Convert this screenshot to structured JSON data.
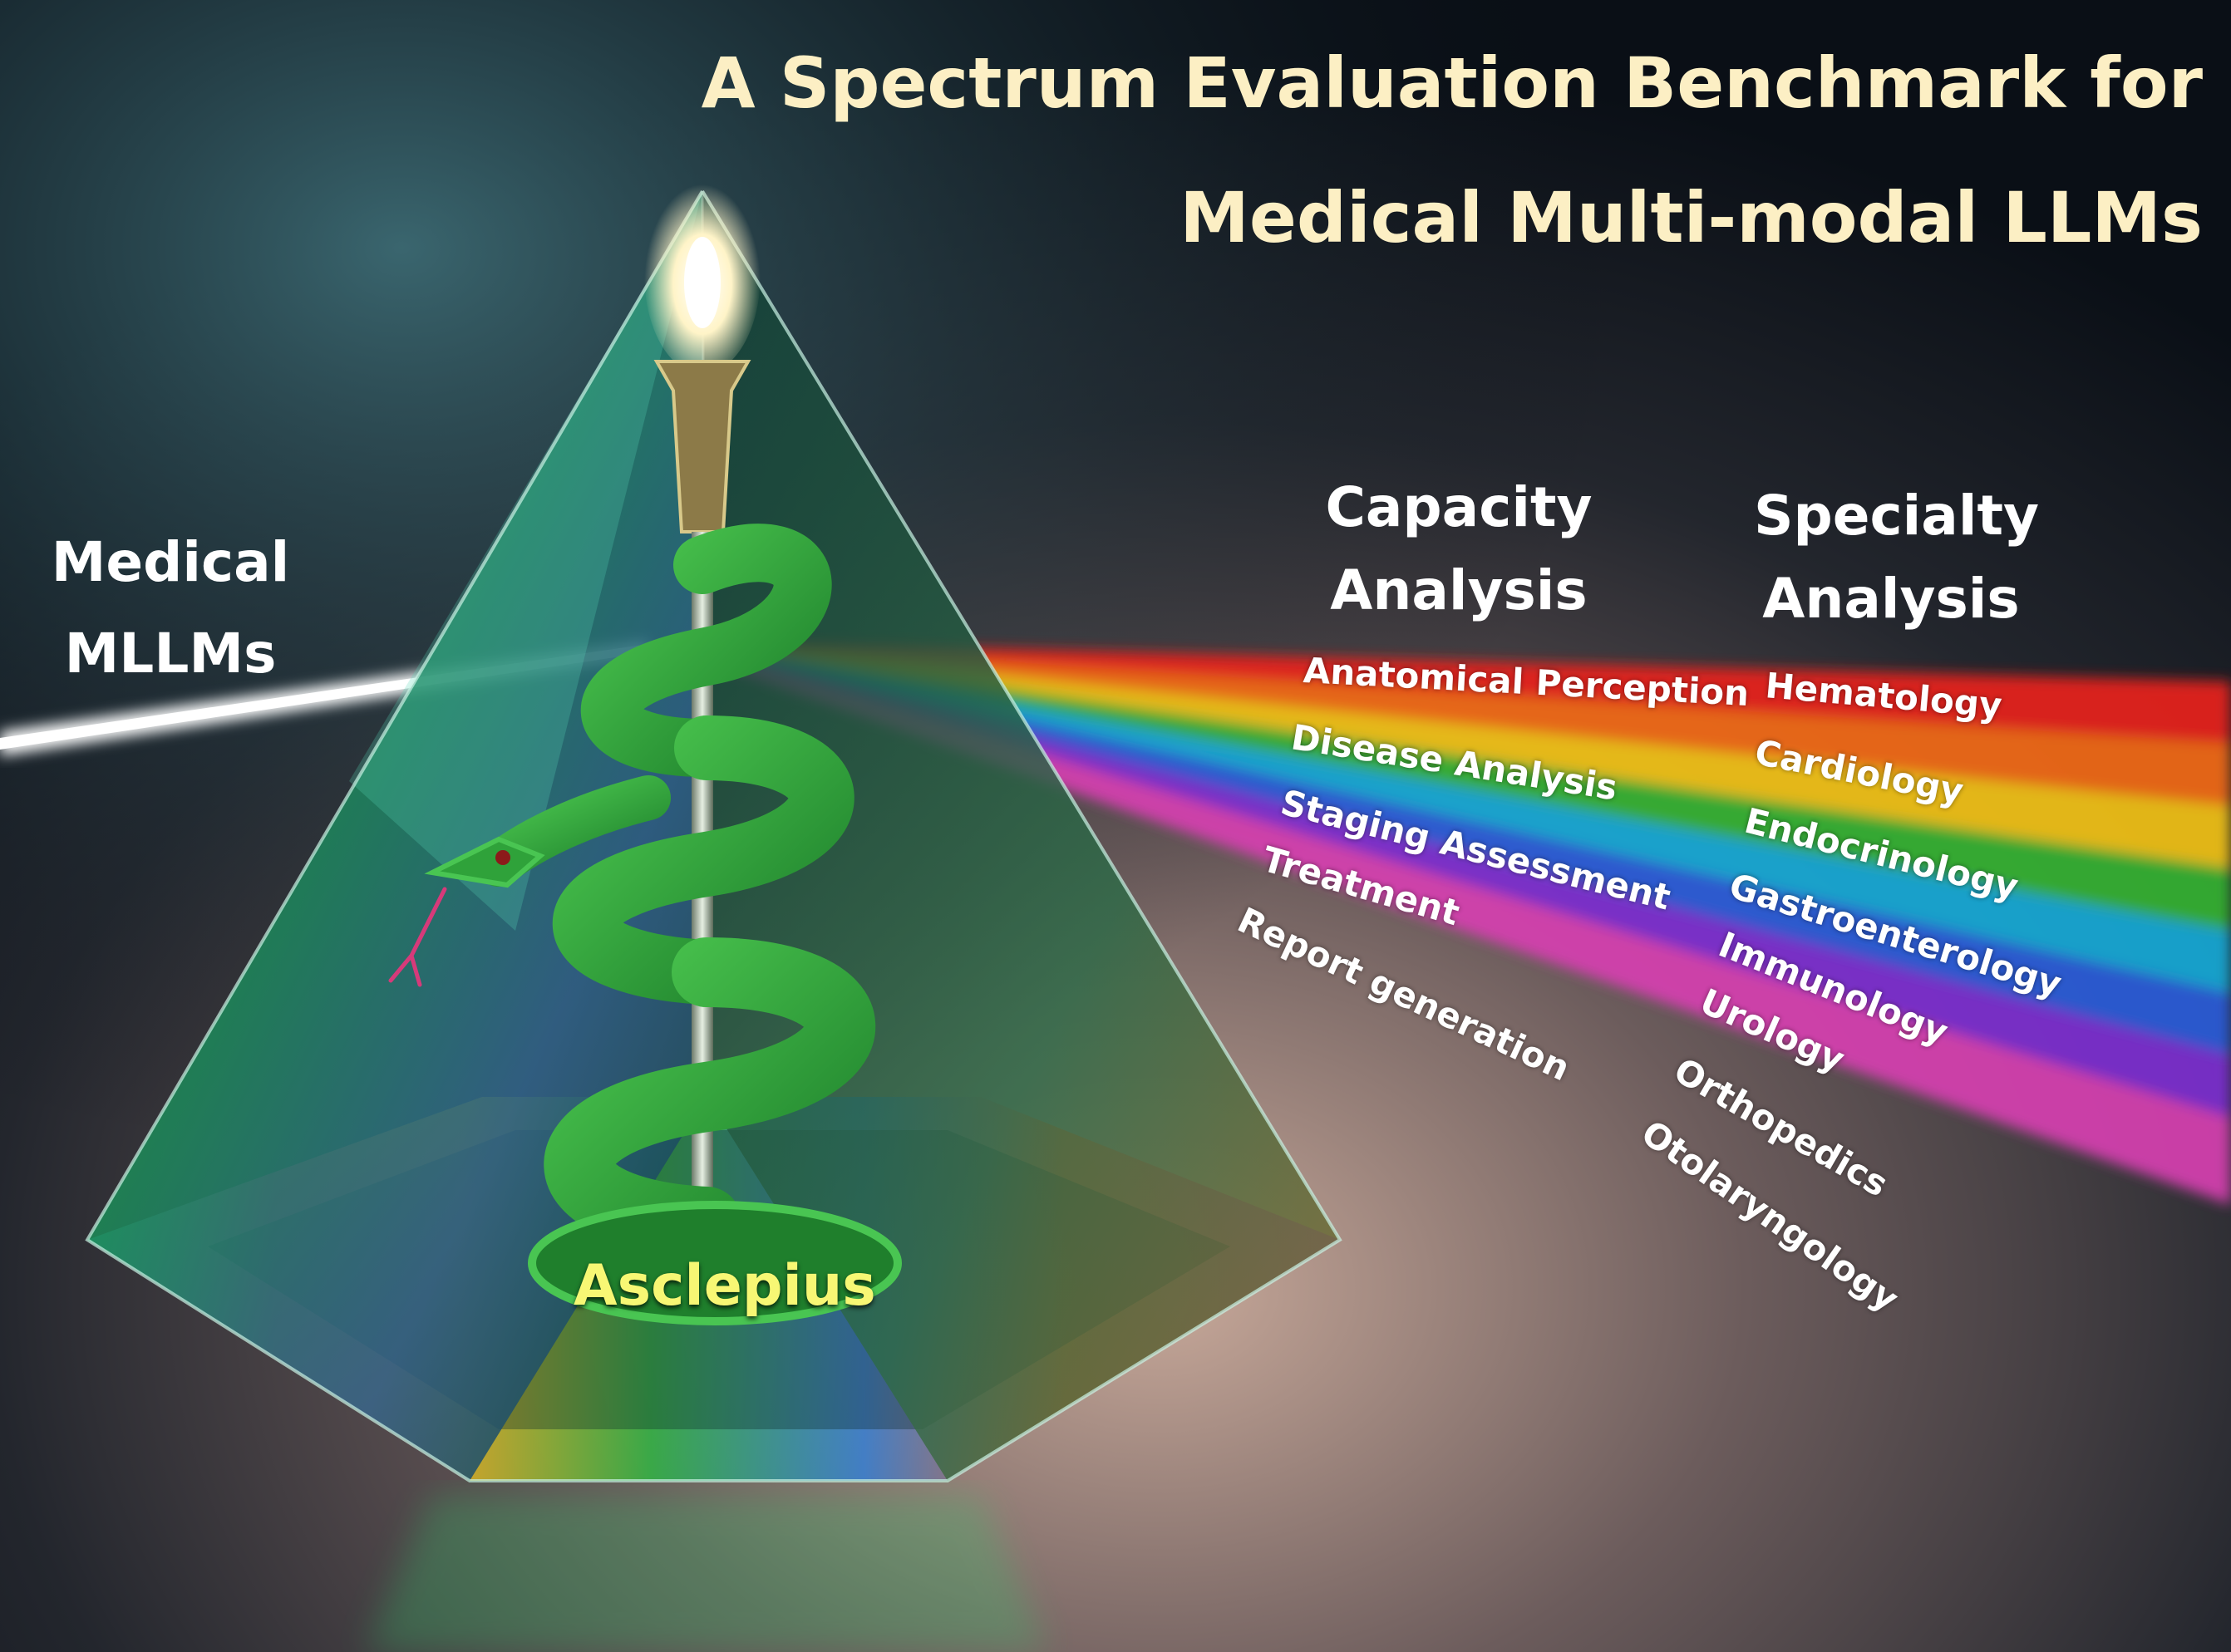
{
  "title": {
    "line1": "A Spectrum Evaluation Benchmark for",
    "line2": "Medical Multi-modal LLMs"
  },
  "input_label": {
    "line1": "Medical",
    "line2": "MLLMs"
  },
  "prism_label": "Asclepius",
  "capacity": {
    "heading_line1": "Capacity",
    "heading_line2": "Analysis",
    "items": [
      "Anatomical Perception",
      "Disease Analysis",
      "Staging Assessment",
      "Treatment",
      "Report generation"
    ]
  },
  "specialty": {
    "heading_line1": "Specialty",
    "heading_line2": "Analysis",
    "items": [
      "Hematology",
      "Cardiology",
      "Endocrinology",
      "Gastroenterology",
      "Immunology",
      "Urology",
      "Orthopedics",
      "Otolaryngology"
    ]
  },
  "colors": {
    "title": "#fcefc4",
    "labels": "#ffffff",
    "prism_label": "#f7f774",
    "snake": "#2fa23a",
    "spectrum": [
      "#e8211b",
      "#f36a12",
      "#f2c216",
      "#34b233",
      "#12a9d6",
      "#2a5bd9",
      "#7b2fd0",
      "#d63fb0"
    ]
  },
  "icons": [
    "prism-icon",
    "rod-of-asclepius-icon",
    "snake-icon",
    "torch-flame-icon",
    "light-beam-icon"
  ]
}
